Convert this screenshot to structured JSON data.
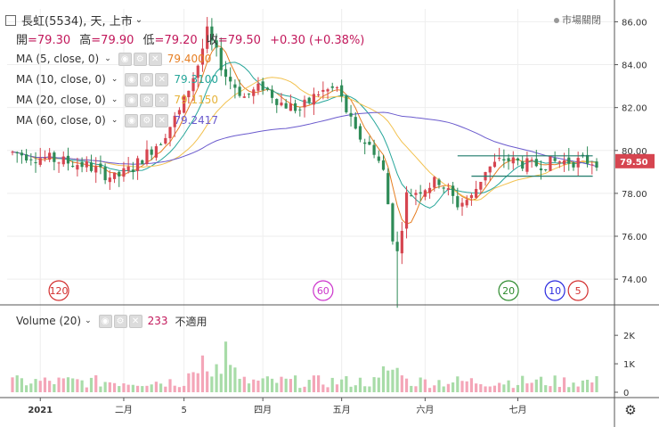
{
  "header": {
    "title": "長虹(5534), 天, 上市",
    "open_label": "開",
    "open": "=79.30",
    "high_label": "高",
    "high": "=79.90",
    "low_label": "低",
    "low": "=79.20",
    "close_label": "收",
    "close": "=79.50",
    "change": "+0.30 (+0.38%)",
    "market_status": "市場關閉"
  },
  "indicators": [
    {
      "label": "MA (5, close, 0)",
      "value": "79.4000",
      "color": "#e67e22"
    },
    {
      "label": "MA (10, close, 0)",
      "value": "79.3100",
      "color": "#26a69a"
    },
    {
      "label": "MA (20, close, 0)",
      "value": "79.1150",
      "color": "#f2c14e"
    },
    {
      "label": "MA (60, close, 0)",
      "value": "79.2417",
      "color": "#6a5acd"
    }
  ],
  "volume_legend": {
    "label": "Volume (20)",
    "value": "233",
    "note": "不適用"
  },
  "price_tag": "79.50",
  "markers": [
    {
      "text": "120",
      "color": "#d32f2f",
      "day": 10
    },
    {
      "text": "60",
      "color": "#cc33cc",
      "day": 67
    },
    {
      "text": "20",
      "color": "#2e8b2e",
      "day": 107
    },
    {
      "text": "10",
      "color": "#2a2adf",
      "day": 117
    },
    {
      "text": "5",
      "color": "#d32f2f",
      "day": 122
    }
  ],
  "colors": {
    "up": "#d64550",
    "down": "#2e8b57",
    "vol_up": "#f4a6b8",
    "vol_down": "#a8dca8",
    "ma60": "#6a5acd",
    "channel": "#1f7a6a"
  },
  "chart_data": {
    "type": "candlestick",
    "title": "長虹(5534), 天, 上市",
    "y_axis": {
      "ticks": [
        74,
        76,
        78,
        80,
        82,
        84,
        86
      ],
      "range": [
        72.8,
        86.6
      ]
    },
    "volume_axis": {
      "ticks": [
        "0",
        "1K",
        "2K"
      ],
      "range": [
        0,
        2600
      ]
    },
    "x_tick_labels": [
      {
        "text": "2021",
        "day": 6
      },
      {
        "text": "二月",
        "day": 24
      },
      {
        "text": "5",
        "day": 37
      },
      {
        "text": "四月",
        "day": 54
      },
      {
        "text": "五月",
        "day": 71
      },
      {
        "text": "六月",
        "day": 89
      },
      {
        "text": "七月",
        "day": 109
      }
    ],
    "grid": true,
    "channel": {
      "upper": 79.75,
      "lower": 78.8,
      "from_day": 96,
      "to_day": 124
    }
  }
}
